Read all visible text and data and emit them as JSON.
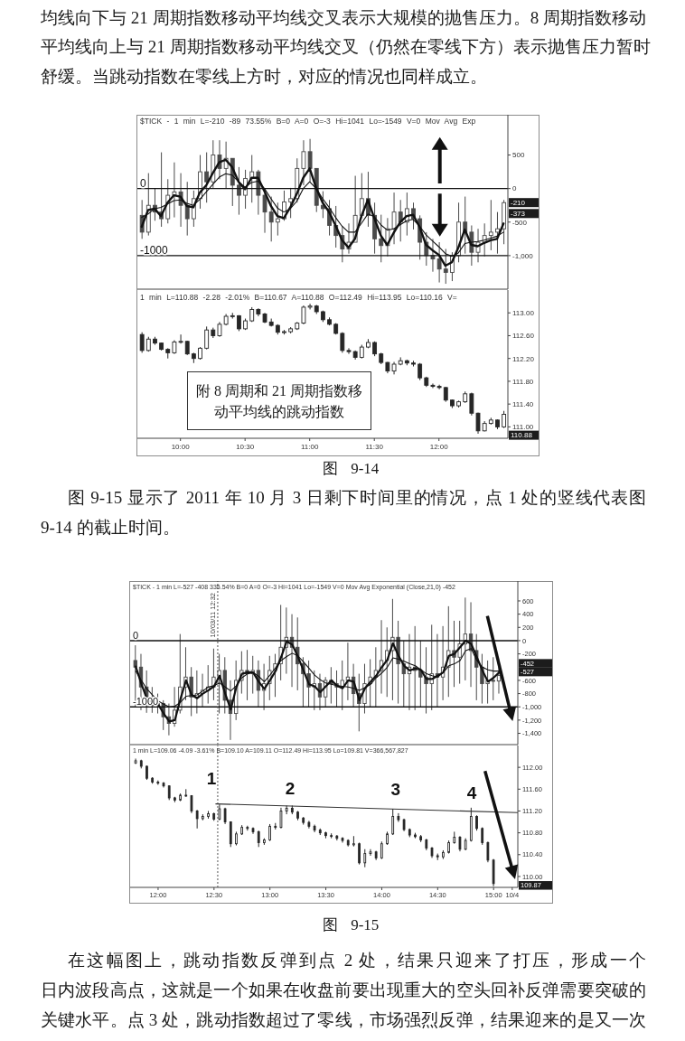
{
  "chart_data": [
    {
      "type": "candlestick",
      "title": "$TICK - 1 min L=-210 -89 73.55% B=0 A=0 O=-3 Hi=1041 Lo=-1549 V=0 Mov Avg Exp",
      "color": "#4a4a4a",
      "x": [
        "2011-10-03T09:42",
        "2011-10-03T09:45",
        "2011-10-03T09:48",
        "2011-10-03T09:51",
        "2011-10-03T09:54",
        "2011-10-03T09:57",
        "2011-10-03T10:00",
        "2011-10-03T10:03",
        "2011-10-03T10:06",
        "2011-10-03T10:09",
        "2011-10-03T10:12",
        "2011-10-03T10:15",
        "2011-10-03T10:18",
        "2011-10-03T10:21",
        "2011-10-03T10:24",
        "2011-10-03T10:27",
        "2011-10-03T10:30",
        "2011-10-03T10:33",
        "2011-10-03T10:36",
        "2011-10-03T10:39",
        "2011-10-03T10:42",
        "2011-10-03T10:45",
        "2011-10-03T10:48",
        "2011-10-03T10:51",
        "2011-10-03T10:54",
        "2011-10-03T10:57",
        "2011-10-03T11:00",
        "2011-10-03T11:03",
        "2011-10-03T11:06",
        "2011-10-03T11:09",
        "2011-10-03T11:12",
        "2011-10-03T11:15",
        "2011-10-03T11:18",
        "2011-10-03T11:21",
        "2011-10-03T11:24",
        "2011-10-03T11:27",
        "2011-10-03T11:30",
        "2011-10-03T11:33",
        "2011-10-03T11:36",
        "2011-10-03T11:39",
        "2011-10-03T11:42",
        "2011-10-03T11:45",
        "2011-10-03T11:48",
        "2011-10-03T11:51",
        "2011-10-03T11:54",
        "2011-10-03T11:57",
        "2011-10-03T12:00",
        "2011-10-03T12:03",
        "2011-10-03T12:06",
        "2011-10-03T12:09",
        "2011-10-03T12:12",
        "2011-10-03T12:15",
        "2011-10-03T12:18",
        "2011-10-03T12:21",
        "2011-10-03T12:24",
        "2011-10-03T12:27",
        "2011-10-03T12:30"
      ],
      "ohlc": [
        [
          -400,
          -170,
          -750,
          -650
        ],
        [
          -650,
          230,
          -700,
          -250
        ],
        [
          -250,
          0,
          -480,
          -350
        ],
        [
          -350,
          540,
          -570,
          -450
        ],
        [
          -450,
          140,
          -520,
          -100
        ],
        [
          -100,
          390,
          -430,
          -50
        ],
        [
          -50,
          230,
          -570,
          -250
        ],
        [
          -250,
          100,
          -700,
          -450
        ],
        [
          -450,
          -30,
          -570,
          -150
        ],
        [
          -150,
          500,
          -300,
          250
        ],
        [
          250,
          540,
          -210,
          100
        ],
        [
          100,
          720,
          10,
          500
        ],
        [
          500,
          720,
          140,
          300
        ],
        [
          300,
          700,
          0,
          450
        ],
        [
          450,
          450,
          -260,
          50
        ],
        [
          50,
          320,
          -390,
          -100
        ],
        [
          -100,
          280,
          -300,
          150
        ],
        [
          150,
          500,
          -210,
          250
        ],
        [
          250,
          280,
          -390,
          -100
        ],
        [
          -100,
          0,
          -660,
          -350
        ],
        [
          -350,
          -120,
          -790,
          -500
        ],
        [
          -500,
          -210,
          -700,
          -450
        ],
        [
          -450,
          -30,
          -480,
          -200
        ],
        [
          -200,
          10,
          -440,
          -150
        ],
        [
          -150,
          450,
          -210,
          300
        ],
        [
          300,
          720,
          50,
          550
        ],
        [
          550,
          740,
          100,
          300
        ],
        [
          300,
          300,
          -350,
          -250
        ],
        [
          -250,
          -40,
          -440,
          -300
        ],
        [
          -300,
          -170,
          -700,
          -550
        ],
        [
          -550,
          -260,
          -880,
          -700
        ],
        [
          -700,
          -560,
          -1100,
          -900
        ],
        [
          -900,
          -520,
          -970,
          -800
        ],
        [
          -800,
          190,
          -800,
          -400
        ],
        [
          -400,
          230,
          -440,
          -150
        ],
        [
          -150,
          250,
          -570,
          -400
        ],
        [
          -400,
          -210,
          -970,
          -750
        ],
        [
          -750,
          -390,
          -1100,
          -850
        ],
        [
          -850,
          -440,
          -1010,
          -600
        ],
        [
          -600,
          -60,
          -830,
          -350
        ],
        [
          -350,
          -170,
          -790,
          -500
        ],
        [
          -500,
          -60,
          -700,
          -300
        ],
        [
          -300,
          -210,
          -610,
          -450
        ],
        [
          -450,
          -400,
          -1060,
          -800
        ],
        [
          -800,
          -650,
          -1150,
          -1000
        ],
        [
          -1000,
          -750,
          -1240,
          -1050
        ],
        [
          -1050,
          -800,
          -1400,
          -1200
        ],
        [
          -1200,
          -900,
          -1420,
          -1250
        ],
        [
          -1250,
          -950,
          -1380,
          -1000
        ],
        [
          -1000,
          -210,
          -1100,
          -500
        ],
        [
          -500,
          -120,
          -970,
          -650
        ],
        [
          -650,
          -550,
          -1150,
          -950
        ],
        [
          -950,
          -600,
          -1100,
          -800
        ],
        [
          -800,
          -520,
          -1010,
          -700
        ],
        [
          -700,
          -170,
          -920,
          -650
        ],
        [
          -650,
          -350,
          -970,
          -600
        ],
        [
          -600,
          -170,
          -830,
          -210
        ]
      ],
      "series": [
        {
          "type": "line",
          "color": "#111111",
          "values": [
            -570,
            -320,
            -300,
            -410,
            -210,
            -100,
            -120,
            -260,
            -280,
            -60,
            50,
            230,
            390,
            430,
            320,
            100,
            -10,
            160,
            160,
            -40,
            -260,
            -410,
            -440,
            -280,
            -80,
            160,
            300,
            10,
            -210,
            -350,
            -550,
            -770,
            -880,
            -750,
            -410,
            -170,
            -440,
            -700,
            -840,
            -660,
            -500,
            -410,
            -390,
            -570,
            -840,
            -920,
            -990,
            -1150,
            -1100,
            -880,
            -610,
            -840,
            -860,
            -810,
            -770,
            -750,
            -520
          ]
        },
        {
          "type": "line",
          "color": "#111111",
          "values": [
            -430,
            -380,
            -300,
            -280,
            -230,
            -180,
            -170,
            -220,
            -250,
            -160,
            -50,
            60,
            170,
            220,
            200,
            100,
            20,
            90,
            110,
            0,
            -150,
            -290,
            -350,
            -300,
            -190,
            0,
            100,
            0,
            -150,
            -280,
            -430,
            -560,
            -650,
            -650,
            -520,
            -380,
            -420,
            -540,
            -620,
            -600,
            -540,
            -480,
            -460,
            -560,
            -690,
            -780,
            -870,
            -970,
            -1010,
            -960,
            -820,
            -800,
            -790,
            -770,
            -740,
            -710,
            -650
          ]
        }
      ],
      "xlim": [
        "2011-10-03T09:40",
        "2011-10-03T12:32"
      ],
      "ylim": [
        -1500,
        1100
      ],
      "yticks": [
        500,
        0,
        -500,
        {
          "value": -1000,
          "label": "-1,000"
        }
      ],
      "tick_labels": "y",
      "ref_lines": [
        {
          "axis": "y",
          "value": 0,
          "label": "0",
          "color": "#111111"
        },
        {
          "axis": "y",
          "value": -1000,
          "label": "-1000",
          "color": "#111111"
        }
      ],
      "annotations": [
        "均线向下与 21 周期指数移动平均线交叉表示大规模的抛售压力。8 周期指数移动",
        "平均线向上与 21 周期指数移动平均线交叉（仍然在零线下方）表示抛售压力暂时",
        "舒缓。当跳动指数在零线上方时，对应的情况也同样成立。",
        "-210",
        "-373"
      ]
    },
    {
      "type": "candlestick",
      "title": "1 min L=110.88 -2.28 -2.01% B=110.67 A=110.88 O=112.49 Hi=113.95 Lo=110.16 V=",
      "color": "#262626",
      "x": [
        "2011-10-03T09:42",
        "2011-10-03T09:45",
        "2011-10-03T09:48",
        "2011-10-03T09:51",
        "2011-10-03T09:54",
        "2011-10-03T09:57",
        "2011-10-03T10:00",
        "2011-10-03T10:03",
        "2011-10-03T10:06",
        "2011-10-03T10:09",
        "2011-10-03T10:12",
        "2011-10-03T10:15",
        "2011-10-03T10:18",
        "2011-10-03T10:21",
        "2011-10-03T10:24",
        "2011-10-03T10:27",
        "2011-10-03T10:30",
        "2011-10-03T10:33",
        "2011-10-03T10:36",
        "2011-10-03T10:39",
        "2011-10-03T10:42",
        "2011-10-03T10:45",
        "2011-10-03T10:48",
        "2011-10-03T10:51",
        "2011-10-03T10:54",
        "2011-10-03T10:57",
        "2011-10-03T11:00",
        "2011-10-03T11:03",
        "2011-10-03T11:06",
        "2011-10-03T11:09",
        "2011-10-03T11:12",
        "2011-10-03T11:15",
        "2011-10-03T11:18",
        "2011-10-03T11:21",
        "2011-10-03T11:24",
        "2011-10-03T11:27",
        "2011-10-03T11:30",
        "2011-10-03T11:33",
        "2011-10-03T11:36",
        "2011-10-03T11:39",
        "2011-10-03T11:42",
        "2011-10-03T11:45",
        "2011-10-03T11:48",
        "2011-10-03T11:51",
        "2011-10-03T11:54",
        "2011-10-03T11:57",
        "2011-10-03T12:00",
        "2011-10-03T12:03",
        "2011-10-03T12:06",
        "2011-10-03T12:09",
        "2011-10-03T12:12",
        "2011-10-03T12:15",
        "2011-10-03T12:18",
        "2011-10-03T12:21",
        "2011-10-03T12:24",
        "2011-10-03T12:27",
        "2011-10-03T12:30"
      ],
      "ohlc": [
        [
          112.62,
          112.66,
          112.3,
          112.34
        ],
        [
          112.34,
          112.58,
          112.32,
          112.54
        ],
        [
          112.54,
          112.58,
          112.44,
          112.47
        ],
        [
          112.47,
          112.48,
          112.34,
          112.36
        ],
        [
          112.36,
          112.38,
          112.2,
          112.3
        ],
        [
          112.3,
          112.52,
          112.28,
          112.49
        ],
        [
          112.49,
          112.62,
          112.46,
          112.5
        ],
        [
          112.5,
          112.51,
          112.26,
          112.28
        ],
        [
          112.28,
          112.3,
          112.12,
          112.2
        ],
        [
          112.2,
          112.4,
          112.18,
          112.38
        ],
        [
          112.38,
          112.76,
          112.36,
          112.7
        ],
        [
          112.7,
          112.74,
          112.56,
          112.6
        ],
        [
          112.6,
          112.84,
          112.58,
          112.8
        ],
        [
          112.8,
          112.98,
          112.78,
          112.94
        ],
        [
          112.94,
          113,
          112.9,
          112.95
        ],
        [
          112.95,
          112.96,
          112.68,
          112.72
        ],
        [
          112.72,
          112.9,
          112.7,
          112.86
        ],
        [
          112.86,
          113.1,
          112.84,
          113.06
        ],
        [
          113.06,
          113.08,
          112.94,
          112.98
        ],
        [
          112.98,
          113,
          112.82,
          112.84
        ],
        [
          112.84,
          112.9,
          112.76,
          112.78
        ],
        [
          112.78,
          112.8,
          112.62,
          112.66
        ],
        [
          112.66,
          112.7,
          112.62,
          112.67
        ],
        [
          112.67,
          112.75,
          112.64,
          112.72
        ],
        [
          112.72,
          112.84,
          112.7,
          112.82
        ],
        [
          112.82,
          113.13,
          112.8,
          113.1
        ],
        [
          113.1,
          113.16,
          113.06,
          113.12
        ],
        [
          113.12,
          113.14,
          112.98,
          113.02
        ],
        [
          113.02,
          113.04,
          112.84,
          112.88
        ],
        [
          112.88,
          112.92,
          112.78,
          112.8
        ],
        [
          112.8,
          112.82,
          112.62,
          112.64
        ],
        [
          112.64,
          112.66,
          112.3,
          112.34
        ],
        [
          112.34,
          112.38,
          112.28,
          112.32
        ],
        [
          112.32,
          112.34,
          112.18,
          112.22
        ],
        [
          112.22,
          112.44,
          112.2,
          112.4
        ],
        [
          112.4,
          112.54,
          112.38,
          112.48
        ],
        [
          112.48,
          112.5,
          112.24,
          112.28
        ],
        [
          112.28,
          112.3,
          112.1,
          112.13
        ],
        [
          112.13,
          112.14,
          111.94,
          111.98
        ],
        [
          111.98,
          112.14,
          111.92,
          112.1
        ],
        [
          112.1,
          112.22,
          112.08,
          112.16
        ],
        [
          112.16,
          112.18,
          112.08,
          112.12
        ],
        [
          112.12,
          112.16,
          112.06,
          112.1
        ],
        [
          112.1,
          112.12,
          111.82,
          111.86
        ],
        [
          111.86,
          111.88,
          111.7,
          111.73
        ],
        [
          111.73,
          111.76,
          111.68,
          111.71
        ],
        [
          111.71,
          111.74,
          111.66,
          111.69
        ],
        [
          111.69,
          111.7,
          111.44,
          111.47
        ],
        [
          111.47,
          111.48,
          111.33,
          111.37
        ],
        [
          111.37,
          111.46,
          111.34,
          111.44
        ],
        [
          111.44,
          111.62,
          111.42,
          111.58
        ],
        [
          111.58,
          111.6,
          111.2,
          111.24
        ],
        [
          111.24,
          111.25,
          110.88,
          110.93
        ],
        [
          110.93,
          111.1,
          110.92,
          111.06
        ],
        [
          111.06,
          111.16,
          111.04,
          111.12
        ],
        [
          111.12,
          111.13,
          110.96,
          111
        ],
        [
          111,
          111.28,
          110.98,
          111.22
        ]
      ],
      "xlim": [
        "2011-10-03T09:40",
        "2011-10-03T12:32"
      ],
      "xticks": [
        {
          "value": "2011-10-03T10:00",
          "label": "10:00"
        },
        {
          "value": "2011-10-03T10:30",
          "label": "10:30"
        },
        {
          "value": "2011-10-03T11:00",
          "label": "11:00"
        },
        {
          "value": "2011-10-03T11:30",
          "label": "11:30"
        },
        {
          "value": "2011-10-03T12:00",
          "label": "12:00"
        }
      ],
      "ylim": [
        110.8,
        113.4
      ],
      "yticks": [
        {
          "value": 111,
          "label": "111.00"
        },
        {
          "value": 111.4,
          "label": "111.40"
        },
        {
          "value": 111.8,
          "label": "111.80"
        },
        {
          "value": 112.2,
          "label": "112.20"
        },
        {
          "value": 112.6,
          "label": "112.60"
        },
        {
          "value": 113,
          "label": "113.00"
        }
      ],
      "annotations": [
        "附 8 周期和 21 周期指数移动平均线的跳动指数",
        "图 9-14",
        "图 9-15 显示了 2011 年 10 月 3 日剩下时间里的情况，点 1 处的竖线代表图",
        "9-14 的截止时间。",
        "110.88"
      ]
    },
    {
      "type": "candlestick",
      "title": "$TICK - 1 min L=-527 -408 335.54% B=0 A=0 O=-3 Hi=1041 Lo=-1549 V=0 Mov Avg Exponential (Close,21,0) -452",
      "color": "#4a4a4a",
      "x": [
        "2011-10-03T11:48",
        "2011-10-03T11:51",
        "2011-10-03T11:54",
        "2011-10-03T11:57",
        "2011-10-03T12:00",
        "2011-10-03T12:03",
        "2011-10-03T12:06",
        "2011-10-03T12:09",
        "2011-10-03T12:12",
        "2011-10-03T12:15",
        "2011-10-03T12:18",
        "2011-10-03T12:21",
        "2011-10-03T12:24",
        "2011-10-03T12:27",
        "2011-10-03T12:30",
        "2011-10-03T12:33",
        "2011-10-03T12:36",
        "2011-10-03T12:39",
        "2011-10-03T12:42",
        "2011-10-03T12:45",
        "2011-10-03T12:48",
        "2011-10-03T12:51",
        "2011-10-03T12:54",
        "2011-10-03T12:57",
        "2011-10-03T13:00",
        "2011-10-03T13:03",
        "2011-10-03T13:06",
        "2011-10-03T13:09",
        "2011-10-03T13:12",
        "2011-10-03T13:15",
        "2011-10-03T13:18",
        "2011-10-03T13:21",
        "2011-10-03T13:24",
        "2011-10-03T13:27",
        "2011-10-03T13:30",
        "2011-10-03T13:33",
        "2011-10-03T13:36",
        "2011-10-03T13:39",
        "2011-10-03T13:42",
        "2011-10-03T13:45",
        "2011-10-03T13:48",
        "2011-10-03T13:51",
        "2011-10-03T13:54",
        "2011-10-03T13:57",
        "2011-10-03T14:00",
        "2011-10-03T14:03",
        "2011-10-03T14:06",
        "2011-10-03T14:09",
        "2011-10-03T14:12",
        "2011-10-03T14:15",
        "2011-10-03T14:18",
        "2011-10-03T14:21",
        "2011-10-03T14:24",
        "2011-10-03T14:27",
        "2011-10-03T14:30",
        "2011-10-03T14:33",
        "2011-10-03T14:36",
        "2011-10-03T14:39",
        "2011-10-03T14:42",
        "2011-10-03T14:45",
        "2011-10-03T14:48",
        "2011-10-03T14:51",
        "2011-10-03T14:54",
        "2011-10-03T14:57",
        "2011-10-03T15:00",
        "2011-10-03T15:03"
      ],
      "ohlc": [
        [
          -300,
          -70,
          -1000,
          -400
        ],
        [
          -400,
          -200,
          -1050,
          -700
        ],
        [
          -700,
          -450,
          -1090,
          -900
        ],
        [
          -900,
          -700,
          -1090,
          -950
        ],
        [
          -950,
          -800,
          -1100,
          -960
        ],
        [
          -950,
          -900,
          -1350,
          -1150
        ],
        [
          -1150,
          -950,
          -1430,
          -1250
        ],
        [
          -1250,
          -700,
          -1300,
          -1050
        ],
        [
          -1050,
          100,
          -1100,
          -700
        ],
        [
          -700,
          -100,
          -900,
          -550
        ],
        [
          -550,
          -400,
          -1140,
          -850
        ],
        [
          -850,
          -450,
          -1100,
          -800
        ],
        [
          -800,
          -500,
          -1000,
          -750
        ],
        [
          -750,
          -370,
          -950,
          -700
        ],
        [
          -700,
          -120,
          -900,
          -550
        ],
        [
          -550,
          -200,
          -1100,
          -450
        ],
        [
          -450,
          -250,
          -1100,
          -900
        ],
        [
          -900,
          -600,
          -1500,
          -1100
        ],
        [
          -1100,
          -300,
          -1200,
          -600
        ],
        [
          -600,
          -160,
          -800,
          -450
        ],
        [
          -450,
          -140,
          -900,
          -500
        ],
        [
          -500,
          -230,
          -800,
          -450
        ],
        [
          -450,
          -300,
          -1000,
          -750
        ],
        [
          -750,
          -350,
          -1050,
          -650
        ],
        [
          -650,
          -230,
          -900,
          -450
        ],
        [
          -450,
          -200,
          -850,
          -350
        ],
        [
          -350,
          540,
          -600,
          -100
        ],
        [
          -100,
          500,
          -500,
          50
        ],
        [
          50,
          400,
          -700,
          -100
        ],
        [
          -100,
          350,
          -750,
          -350
        ],
        [
          -350,
          -250,
          -1000,
          -500
        ],
        [
          -500,
          -300,
          -1000,
          -700
        ],
        [
          -700,
          -450,
          -1050,
          -650
        ],
        [
          -650,
          -500,
          -1050,
          -850
        ],
        [
          -850,
          -550,
          -1000,
          -600
        ],
        [
          -600,
          -400,
          -950,
          -650
        ],
        [
          -650,
          -450,
          -1000,
          -700
        ],
        [
          -700,
          -300,
          -1050,
          -600
        ],
        [
          -600,
          -30,
          -900,
          -550
        ],
        [
          -550,
          -350,
          -1000,
          -800
        ],
        [
          -800,
          -500,
          -1370,
          -950
        ],
        [
          -950,
          -350,
          -1100,
          -650
        ],
        [
          -650,
          -280,
          -1000,
          -550
        ],
        [
          -550,
          -100,
          -1000,
          -450
        ],
        [
          -450,
          310,
          -800,
          -300
        ],
        [
          -300,
          200,
          -850,
          -150
        ],
        [
          -150,
          630,
          -900,
          50
        ],
        [
          50,
          300,
          -950,
          -350
        ],
        [
          -350,
          0,
          -1000,
          -500
        ],
        [
          -500,
          100,
          -1050,
          -400
        ],
        [
          -400,
          220,
          -1050,
          -450
        ],
        [
          -450,
          0,
          -1000,
          -550
        ],
        [
          -550,
          -100,
          -1100,
          -650
        ],
        [
          -650,
          240,
          -1050,
          -500
        ],
        [
          -500,
          100,
          -1000,
          -550
        ],
        [
          -550,
          220,
          -900,
          -400
        ],
        [
          -400,
          520,
          -850,
          -150
        ],
        [
          -150,
          300,
          -700,
          -250
        ],
        [
          -250,
          300,
          -650,
          -50
        ],
        [
          -50,
          650,
          -600,
          100
        ],
        [
          100,
          580,
          -700,
          -150
        ],
        [
          -150,
          100,
          -900,
          -400
        ],
        [
          -400,
          -200,
          -950,
          -650
        ],
        [
          -650,
          -300,
          -950,
          -600
        ],
        [
          -600,
          -250,
          -900,
          -610
        ],
        [
          -610,
          -330,
          -800,
          -527
        ]
      ],
      "series": [
        {
          "type": "line",
          "color": "#111111",
          "values": [
            -390,
            -650,
            -880,
            -970,
            -960,
            -1100,
            -1220,
            -1200,
            -880,
            -600,
            -820,
            -870,
            -800,
            -750,
            -690,
            -530,
            -800,
            -1040,
            -700,
            -500,
            -480,
            -480,
            -620,
            -730,
            -600,
            -460,
            -250,
            -10,
            -60,
            -240,
            -450,
            -660,
            -690,
            -780,
            -690,
            -600,
            -680,
            -720,
            -600,
            -620,
            -900,
            -720,
            -620,
            -530,
            -400,
            -290,
            -40,
            -230,
            -380,
            -450,
            -420,
            -440,
            -580,
            -580,
            -530,
            -480,
            -230,
            -200,
            -100,
            0,
            -50,
            -250,
            -450,
            -620,
            -560,
            -480
          ]
        },
        {
          "type": "line",
          "color": "#111111",
          "values": [
            -460,
            -600,
            -730,
            -820,
            -910,
            -960,
            -1000,
            -990,
            -930,
            -840,
            -830,
            -820,
            -760,
            -700,
            -680,
            -640,
            -700,
            -760,
            -680,
            -560,
            -500,
            -480,
            -540,
            -620,
            -520,
            -410,
            -300,
            -240,
            -190,
            -230,
            -320,
            -420,
            -520,
            -590,
            -640,
            -660,
            -680,
            -690,
            -700,
            -720,
            -750,
            -710,
            -660,
            -560,
            -490,
            -400,
            -260,
            -280,
            -310,
            -350,
            -380,
            -440,
            -500,
            -530,
            -550,
            -480,
            -380,
            -350,
            -300,
            -150,
            -120,
            -300,
            -400,
            -440,
            -460,
            -460
          ]
        }
      ],
      "xlim": [
        "2011-10-03T11:45",
        "2011-10-03T15:13"
      ],
      "ylim": [
        -1570,
        900
      ],
      "yticks": [
        600,
        400,
        200,
        0,
        -200,
        -600,
        -800,
        {
          "value": -1000,
          "label": "-1,000"
        },
        {
          "value": -1200,
          "label": "-1,200"
        },
        {
          "value": -1400,
          "label": "-1,400"
        }
      ],
      "tick_labels": "y",
      "ref_lines": [
        {
          "axis": "y",
          "value": 0,
          "label": "0",
          "color": "#111111"
        },
        {
          "axis": "y",
          "value": -1000,
          "label": "-1000",
          "color": "#111111"
        },
        {
          "axis": "x",
          "value": "2011-10-03T12:32",
          "label": "10/03/11 12:32",
          "color": "#555555",
          "line_style": "dotted"
        }
      ],
      "annotations": [
        "-452",
        "-527"
      ]
    },
    {
      "type": "candlestick",
      "title": "1 min L=109.06 -4.09 -3.61% B=109.10 A=109.11 O=112.49 Hi=113.95 Lo=109.81 V=366,567,827",
      "color": "#262626",
      "x": [
        "2011-10-03T11:48",
        "2011-10-03T11:51",
        "2011-10-03T11:54",
        "2011-10-03T11:57",
        "2011-10-03T12:00",
        "2011-10-03T12:03",
        "2011-10-03T12:06",
        "2011-10-03T12:09",
        "2011-10-03T12:12",
        "2011-10-03T12:15",
        "2011-10-03T12:18",
        "2011-10-03T12:21",
        "2011-10-03T12:24",
        "2011-10-03T12:27",
        "2011-10-03T12:30",
        "2011-10-03T12:33",
        "2011-10-03T12:36",
        "2011-10-03T12:39",
        "2011-10-03T12:42",
        "2011-10-03T12:45",
        "2011-10-03T12:48",
        "2011-10-03T12:51",
        "2011-10-03T12:54",
        "2011-10-03T12:57",
        "2011-10-03T13:00",
        "2011-10-03T13:03",
        "2011-10-03T13:06",
        "2011-10-03T13:09",
        "2011-10-03T13:12",
        "2011-10-03T13:15",
        "2011-10-03T13:18",
        "2011-10-03T13:21",
        "2011-10-03T13:24",
        "2011-10-03T13:27",
        "2011-10-03T13:30",
        "2011-10-03T13:33",
        "2011-10-03T13:36",
        "2011-10-03T13:39",
        "2011-10-03T13:42",
        "2011-10-03T13:45",
        "2011-10-03T13:48",
        "2011-10-03T13:51",
        "2011-10-03T13:54",
        "2011-10-03T13:57",
        "2011-10-03T14:00",
        "2011-10-03T14:03",
        "2011-10-03T14:06",
        "2011-10-03T14:09",
        "2011-10-03T14:12",
        "2011-10-03T14:15",
        "2011-10-03T14:18",
        "2011-10-03T14:21",
        "2011-10-03T14:24",
        "2011-10-03T14:27",
        "2011-10-03T14:30",
        "2011-10-03T14:33",
        "2011-10-03T14:36",
        "2011-10-03T14:39",
        "2011-10-03T14:42",
        "2011-10-03T14:45",
        "2011-10-03T14:48",
        "2011-10-03T14:51",
        "2011-10-03T14:54",
        "2011-10-03T14:57",
        "2011-10-03T15:00"
      ],
      "ohlc": [
        [
          112.08,
          112.16,
          112.06,
          112.12
        ],
        [
          112.12,
          112.14,
          111.98,
          112.02
        ],
        [
          112.02,
          112.03,
          111.77,
          111.8
        ],
        [
          111.8,
          111.82,
          111.7,
          111.73
        ],
        [
          111.73,
          111.76,
          111.68,
          111.71
        ],
        [
          111.71,
          111.73,
          111.63,
          111.66
        ],
        [
          111.66,
          111.67,
          111.4,
          111.44
        ],
        [
          111.44,
          111.46,
          111.36,
          111.4
        ],
        [
          111.4,
          111.52,
          111.38,
          111.49
        ],
        [
          111.49,
          111.6,
          111.46,
          111.48
        ],
        [
          111.48,
          111.49,
          111.16,
          111.2
        ],
        [
          111.2,
          111.22,
          110.88,
          111.06
        ],
        [
          111.06,
          111.14,
          111.03,
          111.1
        ],
        [
          111.1,
          111.2,
          111.06,
          111.15
        ],
        [
          111.15,
          111.17,
          111.02,
          111.05
        ],
        [
          111.05,
          111.32,
          111.03,
          111.24
        ],
        [
          111.24,
          111.26,
          110.96,
          111
        ],
        [
          111,
          111.01,
          110.54,
          110.6
        ],
        [
          110.6,
          110.82,
          110.57,
          110.78
        ],
        [
          110.78,
          110.94,
          110.76,
          110.9
        ],
        [
          110.9,
          110.93,
          110.84,
          110.88
        ],
        [
          110.88,
          110.9,
          110.78,
          110.82
        ],
        [
          110.82,
          110.84,
          110.54,
          110.62
        ],
        [
          110.62,
          110.7,
          110.58,
          110.67
        ],
        [
          110.67,
          110.96,
          110.65,
          110.92
        ],
        [
          110.92,
          110.98,
          110.86,
          110.9
        ],
        [
          110.9,
          111.26,
          110.88,
          111.2
        ],
        [
          111.2,
          111.3,
          111.14,
          111.25
        ],
        [
          111.25,
          111.3,
          111.14,
          111.18
        ],
        [
          111.18,
          111.2,
          111.03,
          111.07
        ],
        [
          111.07,
          111.09,
          110.95,
          110.99
        ],
        [
          110.99,
          111.02,
          110.88,
          110.92
        ],
        [
          110.92,
          110.95,
          110.81,
          110.85
        ],
        [
          110.85,
          110.88,
          110.76,
          110.8
        ],
        [
          110.8,
          110.82,
          110.7,
          110.75
        ],
        [
          110.75,
          110.79,
          110.7,
          110.74
        ],
        [
          110.74,
          110.76,
          110.66,
          110.7
        ],
        [
          110.7,
          110.72,
          110.62,
          110.66
        ],
        [
          110.66,
          110.68,
          110.55,
          110.58
        ],
        [
          110.58,
          110.74,
          110.55,
          110.6
        ],
        [
          110.6,
          110.62,
          110.22,
          110.25
        ],
        [
          110.25,
          110.5,
          110.17,
          110.42
        ],
        [
          110.42,
          110.5,
          110.38,
          110.45
        ],
        [
          110.45,
          110.47,
          110.3,
          110.34
        ],
        [
          110.34,
          110.64,
          110.32,
          110.6
        ],
        [
          110.6,
          110.82,
          110.58,
          110.78
        ],
        [
          110.78,
          111.24,
          110.76,
          111.1
        ],
        [
          111.1,
          111.16,
          111,
          111.04
        ],
        [
          111.04,
          111.06,
          110.83,
          110.86
        ],
        [
          110.86,
          110.88,
          110.72,
          110.76
        ],
        [
          110.76,
          110.8,
          110.7,
          110.73
        ],
        [
          110.73,
          110.76,
          110.63,
          110.67
        ],
        [
          110.67,
          110.69,
          110.48,
          110.52
        ],
        [
          110.52,
          110.54,
          110.34,
          110.38
        ],
        [
          110.38,
          110.42,
          110.3,
          110.36
        ],
        [
          110.36,
          110.48,
          110.32,
          110.44
        ],
        [
          110.44,
          110.66,
          110.42,
          110.62
        ],
        [
          110.62,
          110.82,
          110.6,
          110.72
        ],
        [
          110.72,
          110.74,
          110.46,
          110.5
        ],
        [
          110.5,
          110.7,
          110.48,
          110.66
        ],
        [
          110.66,
          111.26,
          110.64,
          111.1
        ],
        [
          111.1,
          111.12,
          110.84,
          110.88
        ],
        [
          110.88,
          110.9,
          110.58,
          110.62
        ],
        [
          110.62,
          110.64,
          110.26,
          110.3
        ],
        [
          110.3,
          110.32,
          109.82,
          109.87
        ]
      ],
      "series": [
        {
          "type": "line",
          "color": "#333333",
          "x": [
            "2011-10-03T12:31",
            "2011-10-03T15:13"
          ],
          "values": [
            111.33,
            111.17
          ]
        }
      ],
      "xlim": [
        "2011-10-03T11:45",
        "2011-10-03T15:13"
      ],
      "xticks": [
        {
          "value": "2011-10-03T12:00",
          "label": "12:00"
        },
        {
          "value": "2011-10-03T12:30",
          "label": "12:30"
        },
        {
          "value": "2011-10-03T13:00",
          "label": "13:00"
        },
        {
          "value": "2011-10-03T13:30",
          "label": "13:30"
        },
        {
          "value": "2011-10-03T14:00",
          "label": "14:00"
        },
        {
          "value": "2011-10-03T14:30",
          "label": "14:30"
        },
        {
          "value": "2011-10-03T15:00",
          "label": "15:00"
        },
        {
          "value": "2011-10-03T15:10",
          "label": "10/4"
        }
      ],
      "ylim": [
        109.8,
        112.4
      ],
      "yticks": [
        {
          "value": 110,
          "label": "110.00"
        },
        {
          "value": 110.4,
          "label": "110.40"
        },
        {
          "value": 110.8,
          "label": "110.80"
        },
        {
          "value": 111.2,
          "label": "111.20"
        },
        {
          "value": 111.6,
          "label": "111.60"
        },
        {
          "value": 112,
          "label": "112.00"
        }
      ],
      "ref_lines": [
        {
          "axis": "x",
          "value": "2011-10-03T12:32",
          "color": "#555555",
          "line_style": "dotted"
        }
      ],
      "annotations": [
        "1",
        "2",
        "3",
        "4",
        "109.87",
        "图 9-15",
        "在这幅图上，跳动指数反弹到点 2 处，结果只迎来了打压，形成一个",
        "日内波段高点，这就是一个如果在收盘前要出现重大的空头回补反弹需要突破的",
        "关键水平。点 3 处，跳动指数超过了零线，市场强烈反弹，结果迎来的是又一次"
      ]
    }
  ]
}
